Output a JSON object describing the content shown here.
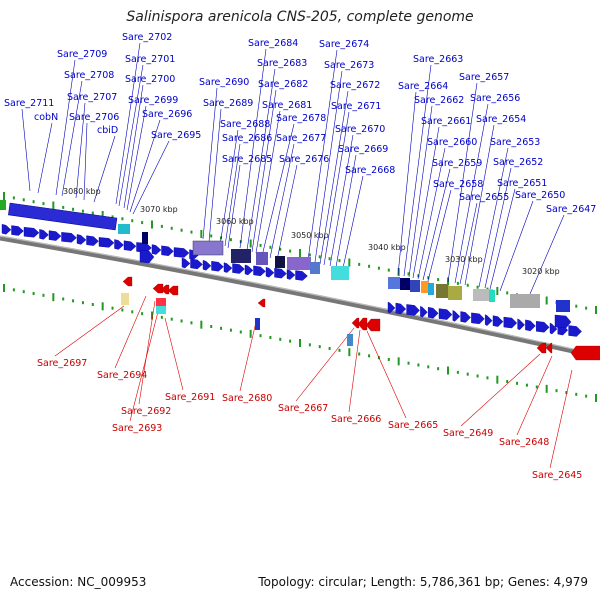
{
  "title": "Salinispora arenicola CNS-205, complete genome",
  "footer": {
    "accession": "Accession: NC_009953",
    "info": "Topology: circular; Length: 5,786,361 bp; Genes: 4,979"
  },
  "colors": {
    "forward": "#1a1acc",
    "reverse": "#dd0000",
    "backbone": "#777777",
    "tick": "#229922"
  },
  "kbp_labels": [
    "3080 kbp",
    "3070 kbp",
    "3060 kbp",
    "3050 kbp",
    "3040 kbp",
    "3030 kbp",
    "3020 kbp"
  ],
  "forward_genes": [
    "Sare_2711",
    "cobN",
    "Sare_2709",
    "Sare_2708",
    "Sare_2707",
    "Sare_2706",
    "cbiD",
    "Sare_2702",
    "Sare_2701",
    "Sare_2700",
    "Sare_2699",
    "Sare_2696",
    "Sare_2695",
    "Sare_2690",
    "Sare_2689",
    "Sare_2688",
    "Sare_2686",
    "Sare_2685",
    "Sare_2684",
    "Sare_2683",
    "Sare_2682",
    "Sare_2681",
    "Sare_2678",
    "Sare_2677",
    "Sare_2676",
    "Sare_2674",
    "Sare_2673",
    "Sare_2672",
    "Sare_2671",
    "Sare_2670",
    "Sare_2669",
    "Sare_2668",
    "Sare_2664",
    "Sare_2663",
    "Sare_2662",
    "Sare_2661",
    "Sare_2660",
    "Sare_2659",
    "Sare_2658",
    "Sare_2657",
    "Sare_2656",
    "Sare_2655",
    "Sare_2654",
    "Sare_2653",
    "Sare_2652",
    "Sare_2651",
    "Sare_2650",
    "Sare_2647"
  ],
  "reverse_genes": [
    "Sare_2697",
    "Sare_2694",
    "Sare_2692",
    "Sare_2693",
    "Sare_2691",
    "Sare_2680",
    "Sare_2667",
    "Sare_2666",
    "Sare_2665",
    "Sare_2649",
    "Sare_2648",
    "Sare_2645"
  ]
}
